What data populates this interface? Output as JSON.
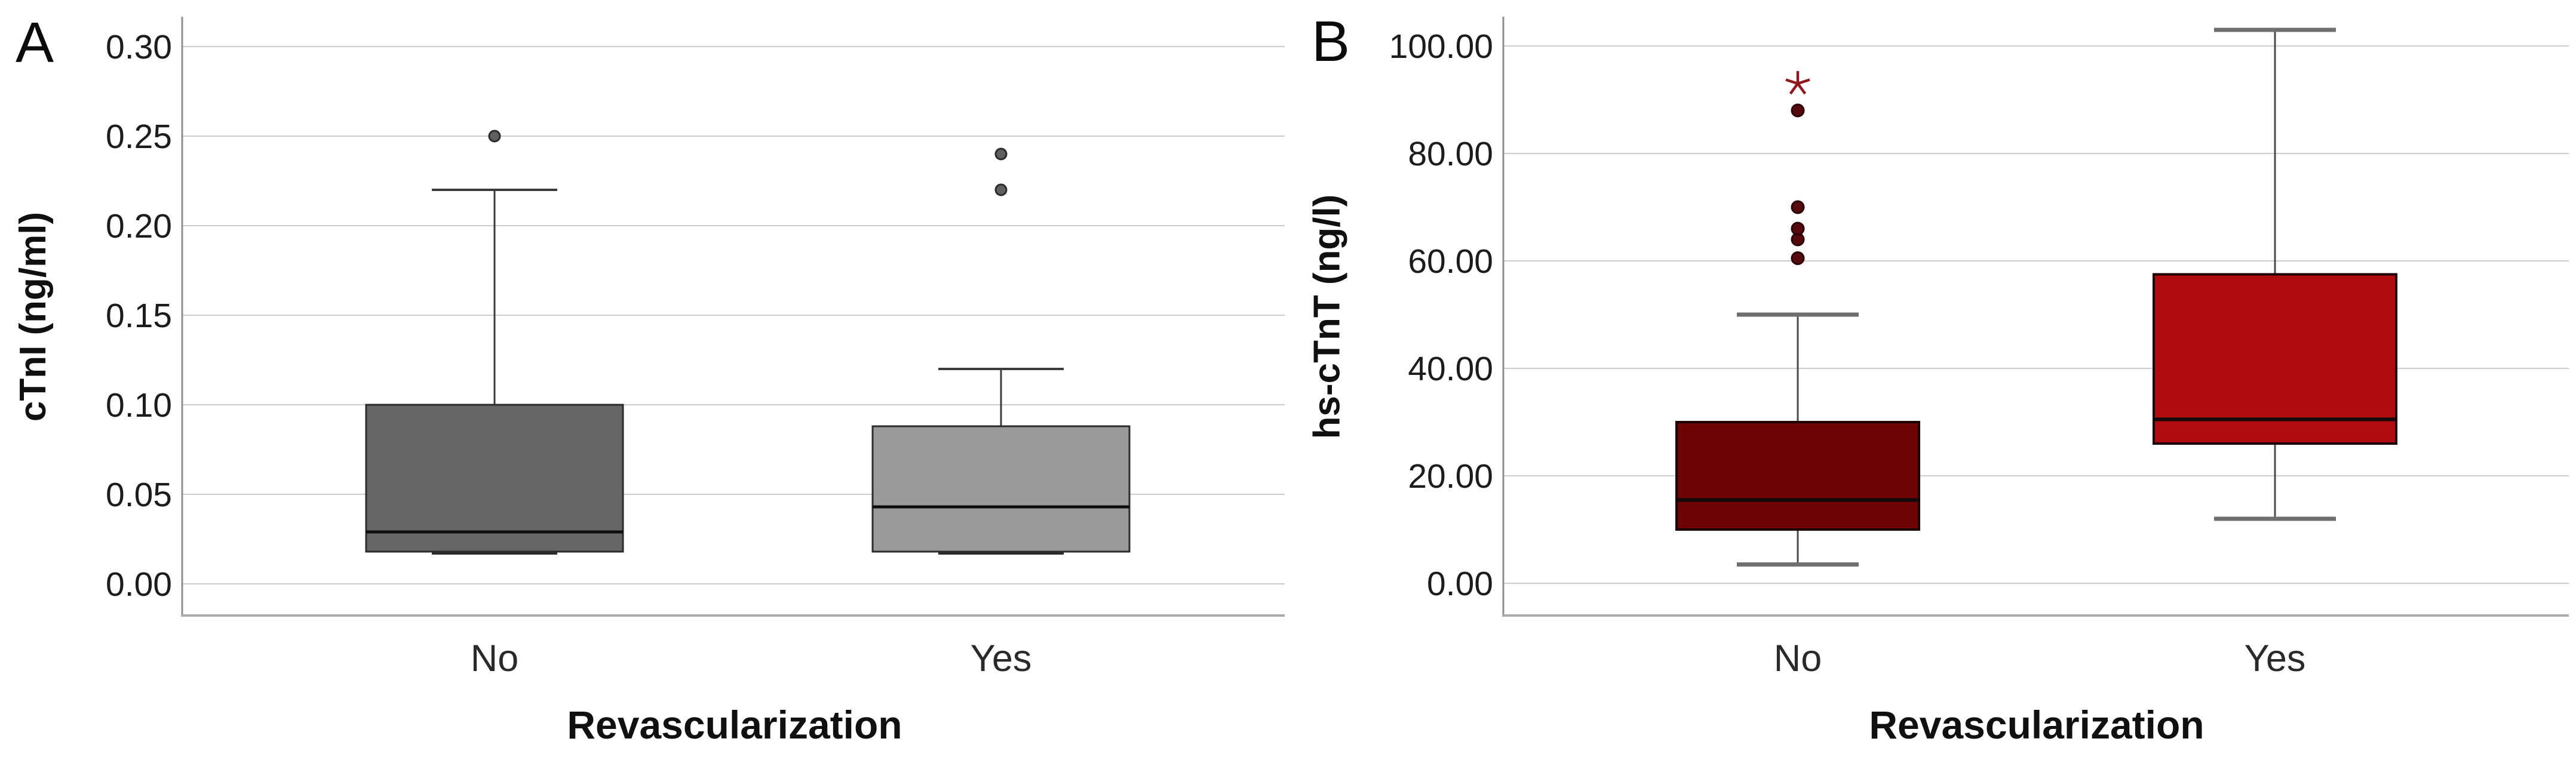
{
  "chart_data": [
    {
      "type": "box",
      "panel_label": "A",
      "ylabel": "cTnI (ng/ml)",
      "xlabel": "Revascularization",
      "categories": [
        "No",
        "Yes"
      ],
      "ylim": [
        0,
        0.3
      ],
      "grid": true,
      "legend": "none",
      "y_ticks": [
        {
          "v": 0.3,
          "label": "0.30"
        },
        {
          "v": 0.25,
          "label": "0.25"
        },
        {
          "v": 0.2,
          "label": "0.20"
        },
        {
          "v": 0.15,
          "label": "0.15"
        },
        {
          "v": 0.1,
          "label": "0.10"
        },
        {
          "v": 0.05,
          "label": "0.05"
        },
        {
          "v": 0.0,
          "label": "0.00"
        }
      ],
      "groups": [
        {
          "name": "No",
          "fill": "#666666",
          "q1": 0.018,
          "median": 0.029,
          "q3": 0.1,
          "whisker_low": 0.018,
          "whisker_high": 0.22,
          "outliers": [
            0.25
          ],
          "extremes": []
        },
        {
          "name": "Yes",
          "fill": "#9a9a9a",
          "q1": 0.018,
          "median": 0.043,
          "q3": 0.088,
          "whisker_low": 0.018,
          "whisker_high": 0.12,
          "outliers": [
            0.24,
            0.22
          ],
          "extremes": []
        }
      ],
      "style": {
        "box_border": "#2b2b2b",
        "box_border_w": 3,
        "median_color": "#0e0e0e",
        "median_w": 5,
        "whisker_color": "#3c3c3c",
        "whisker_w": 3,
        "cap_color": "#3c3c3c",
        "cap_w": 4,
        "outlier_fill": "#5f5f5f",
        "outlier_stroke": "#2c2c2c",
        "point_r": 9,
        "extreme_color": "#8e181d"
      }
    },
    {
      "type": "box",
      "panel_label": "B",
      "ylabel": "hs-cTnT (ng/l)",
      "xlabel": "Revascularization",
      "categories": [
        "No",
        "Yes"
      ],
      "ylim": [
        0,
        100
      ],
      "grid": true,
      "legend": "none",
      "y_ticks": [
        {
          "v": 100,
          "label": "100.00"
        },
        {
          "v": 80,
          "label": "80.00"
        },
        {
          "v": 60,
          "label": "60.00"
        },
        {
          "v": 40,
          "label": "40.00"
        },
        {
          "v": 20,
          "label": "20.00"
        },
        {
          "v": 0,
          "label": "0.00"
        }
      ],
      "groups": [
        {
          "name": "No",
          "fill": "#6e0305",
          "q1": 10,
          "median": 15.5,
          "q3": 30,
          "whisker_low": 3.5,
          "whisker_high": 50,
          "outliers": [
            60.5,
            64,
            66,
            70,
            88
          ],
          "extremes": [
            93
          ]
        },
        {
          "name": "Yes",
          "fill": "#b00b0e",
          "q1": 26,
          "median": 30.5,
          "q3": 57.5,
          "whisker_low": 12,
          "whisker_high": 103,
          "outliers": [],
          "extremes": []
        }
      ],
      "style": {
        "box_border": "#1c0202",
        "box_border_w": 4,
        "median_color": "#120a0a",
        "median_w": 6,
        "whisker_color": "#4a4a4a",
        "whisker_w": 3,
        "cap_color": "#6f6f6f",
        "cap_w": 7,
        "outlier_fill": "#570a0d",
        "outlier_stroke": "#2a0405",
        "point_r": 10,
        "extreme_color": "#8e181d"
      }
    }
  ]
}
